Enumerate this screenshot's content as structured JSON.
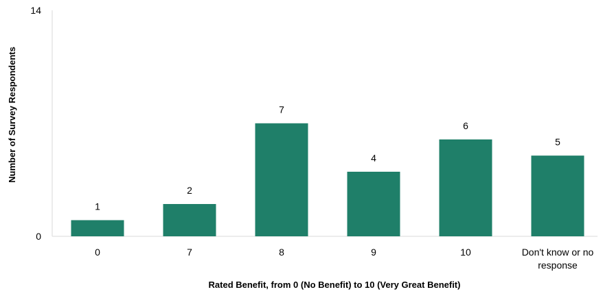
{
  "chart_data": {
    "type": "bar",
    "title": "",
    "xlabel": "Rated Benefit, from 0 (No Benefit) to 10 (Very Great Benefit)",
    "ylabel": "Number of Survey Respondents",
    "categories": [
      "0",
      "7",
      "8",
      "9",
      "10",
      "Don't know or no response"
    ],
    "category_lines": [
      [
        "0"
      ],
      [
        "7"
      ],
      [
        "8"
      ],
      [
        "9"
      ],
      [
        "10"
      ],
      [
        "Don't know or no",
        "response"
      ]
    ],
    "values": [
      1,
      2,
      7,
      4,
      6,
      5
    ],
    "ylim": [
      0,
      14
    ],
    "yticks": [
      "0",
      "14"
    ],
    "grid": false,
    "legend": "none",
    "bar_color": "#1f7f69",
    "axis_color": "#d9d9d9"
  }
}
